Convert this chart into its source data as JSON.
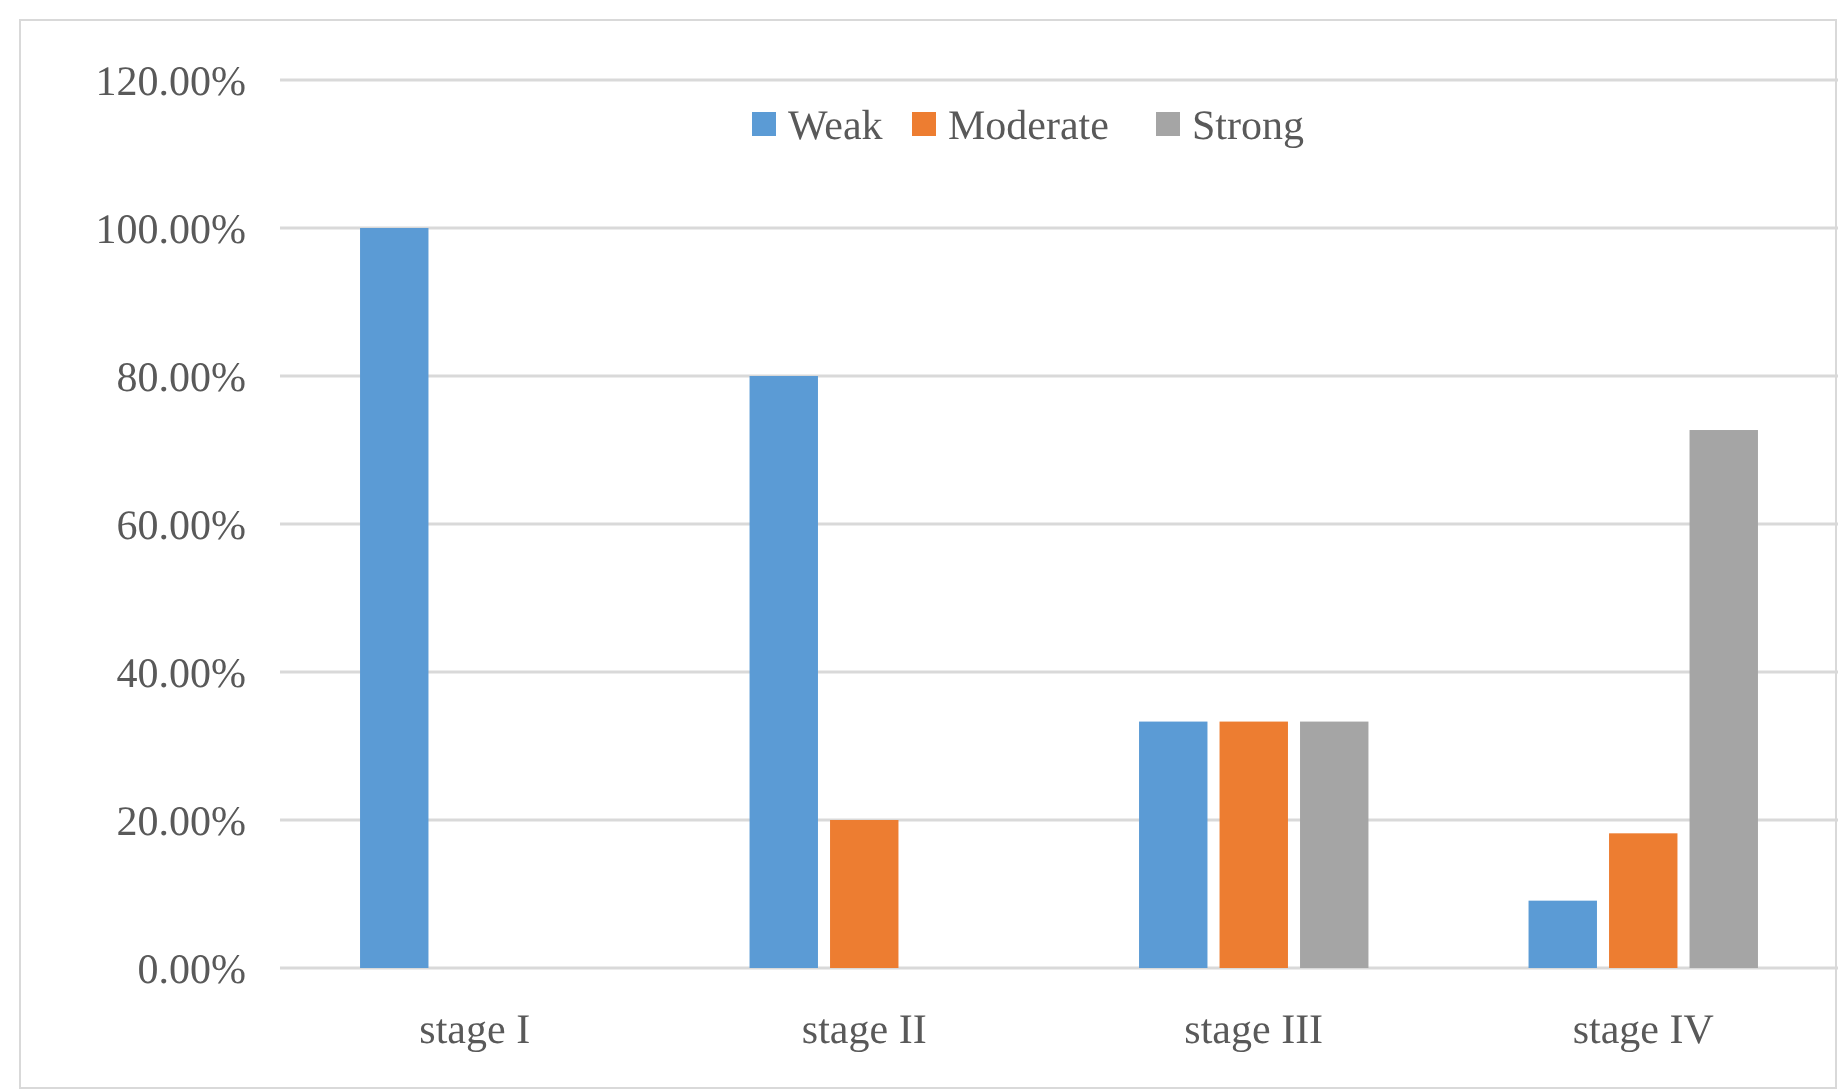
{
  "chart_data": {
    "type": "bar",
    "categories": [
      "stage I",
      "stage II",
      "stage III",
      "stage IV"
    ],
    "series": [
      {
        "name": "Weak",
        "color": "#5b9bd5",
        "values": [
          100,
          80,
          33.3,
          9.1
        ]
      },
      {
        "name": "Moderate",
        "color": "#ed7d31",
        "values": [
          0,
          20,
          33.3,
          18.2
        ]
      },
      {
        "name": "Strong",
        "color": "#a5a5a5",
        "values": [
          0,
          0,
          33.3,
          72.7
        ]
      }
    ],
    "ylim": [
      0,
      120
    ],
    "yticks": [
      {
        "value": 0,
        "label": "0.00%"
      },
      {
        "value": 20,
        "label": "20.00%"
      },
      {
        "value": 40,
        "label": "40.00%"
      },
      {
        "value": 60,
        "label": "60.00%"
      },
      {
        "value": 80,
        "label": "80.00%"
      },
      {
        "value": 100,
        "label": "100.00%"
      },
      {
        "value": 120,
        "label": "120.00%"
      }
    ],
    "grid": "y",
    "legend": "top"
  }
}
